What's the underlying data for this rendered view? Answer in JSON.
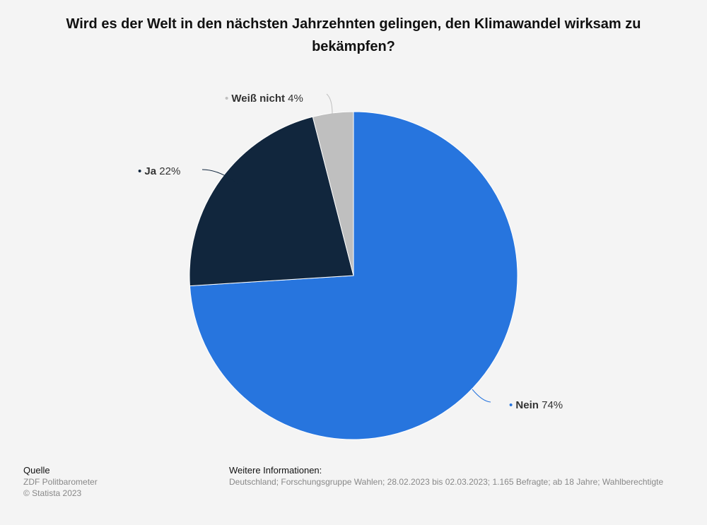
{
  "title": "Wird es der Welt in den nächsten Jahrzehnten gelingen, den Klimawandel wirksam zu bekämpfen?",
  "chart_data": {
    "type": "pie",
    "slices": [
      {
        "label": "Nein",
        "value": 74,
        "value_text": "74%",
        "color": "#2775de"
      },
      {
        "label": "Ja",
        "value": 22,
        "value_text": "22%",
        "color": "#11263d"
      },
      {
        "label": "Weiß nicht",
        "value": 4,
        "value_text": "4%",
        "color": "#bfbfbf"
      }
    ]
  },
  "footer": {
    "source_heading": "Quelle",
    "source_name": "ZDF Politbarometer",
    "copyright": "© Statista 2023",
    "info_heading": "Weitere Informationen:",
    "info_text": "Deutschland; Forschungsgruppe Wahlen; 28.02.2023 bis 02.03.2023; 1.165 Befragte; ab 18 Jahre; Wahlberechtigte"
  }
}
